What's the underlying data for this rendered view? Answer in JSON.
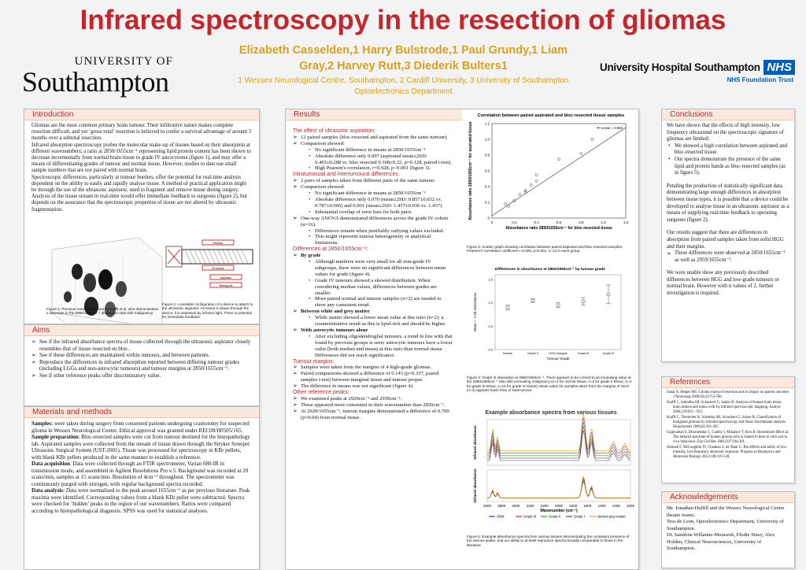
{
  "header": {
    "title": "Infrared spectroscopy in the resection of gliomas",
    "authors_line1": "Elizabeth Casselden,1 Harry Bulstrode,1 Paul Grundy,1 Liam",
    "authors_line2": "Gray,2 Harvey Rutt,3 Diederik Bulters1",
    "affil_line1": "1 Wessex Neurological Centre, Southampton, 2 Cardiff University, 3 University of Southampton",
    "affil_line2": "Optoelectronics Department",
    "uni_line1": "UNIVERSITY OF",
    "uni_line2": "Southampton",
    "hosp_name": "University Hospital Southampton",
    "hosp_nhs": "NHS",
    "hosp_trust": "NHS Foundation Trust"
  },
  "intro": {
    "title": "Introduction",
    "p1": "Gliomas are the most common primary brain tumour. Their infiltrative nature makes complete resection difficult, and yet ‘gross total’ resection is believed to confer a survival advantage of around 3 months over a subtotal resection.",
    "p2": "Infrared absorption spectroscopy probes the molecular make-up of tissues based on their absorption at different wavenumbers; a ratio at 2850/1655cm⁻¹ representing lipid:protein content has been shown to decrease incrementally from normal brain tissue to grade IV astrocytoma (figure 1), and may offer a means of differentiating grades of tumour and normal tissue. However, studies to date use small sample numbers that are not paired with normal brain.",
    "p3": "Spectroscopic differences, particularly at tumour borders, offer the potential for real-time analysis dependent on the ability to easily and rapidly analyse tissue. A method of practical application might be through the use of the ultrasonic aspirator, used to fragment and remove tissue during surgery. Analysis of the tissue stream in real-time would offer immediate feedback to surgeons (figure 2), but depends on the assurance that the spectroscopic properties of tissue are not altered by ultrasonic fragmentation.",
    "fig1_caption": "Figure 1: Previous results published by Krafft et al, who demonstrated a decrease in the 2850/1655cm⁻¹ absorption ratio with malignancy.",
    "fig2_caption": "Figure 2: A possible configuration of a device to attach to the ultrasonic aspirator. As tissue is drawn through the device, it is assessed by infrared light. There is potential for immediate feedback.",
    "fig2_labels": [
      "Detector",
      "IR source",
      "Aspirator",
      "Waveguide"
    ]
  },
  "aims": {
    "title": "Aims",
    "items": [
      "See if the infrared absorbance spectra of tissue collected through the ultrasonic aspirator closely resembles that of tissue resected en bloc.",
      "See if these differences are maintained within tumours, and between patients.",
      "Reproduce the differences in infrared absorption reported between differing tumour grades (including LGGs and non-astrocytic tumours) and tumour margins at 2850/1655cm⁻¹.",
      "See if other reference peaks offer discriminatory value."
    ]
  },
  "methods": {
    "title": "Materials and methods",
    "s1_label": "Samples:",
    "s1": " were taken during surgery from consented patients undergoing craniotomy for suspected glioma in Wessex Neurological Centre. Ethical approval was granted under REC08/H0505/165.",
    "s2_label": "Sample preparation",
    "s2": ": Bloc-resected samples were cut from tumour destined for the histopathology lab. Aspirated samples were collected from the stream of tissue drawn through the Stryker Sonopet Ultrasonic Surgical System (UST-2001). Tissue was processed for spectroscopy in KBr pellets, with blank KBr pellets produced in the same manner to establish a reference.",
    "s3_label": "Data acquisition",
    "s3": ": Data were collected through an FTIR spectrometer, Varian 680-IR in transmission mode, and assembled in Agilent Resolutions Pro v.5. Background was recorded at 20 scans/min, samples at 15 scans/min. Resolution of 4cm⁻¹ throughout. The spectrometer was continuously purged with nitrogen, with regular background spectra recorded.",
    "s4_label": "Data analysis:",
    "s4": " Data were normalised to the peak around 1655cm⁻¹ as per previous literature. Peak maxima were identified. Corresponding values from a blank KBr pellet were subtracted. Spectra were checked for ‘hidden’ peaks in the region of our wavenumbers. Ratios were compared according to histopathological diagnosis. SPSS was used for statistical analyses."
  },
  "results": {
    "title": "Results",
    "h1": "The effect of ultrasonic aspiration:",
    "a1": "12 paired samples (bloc-resected and aspirated from the same tumour).",
    "a2": "Comparison showed:",
    "a2_items": [
      "No significant difference in means at 2850/1655cm⁻¹",
      "Absolute difference only 0.097 (aspirated mean±2SD: 0.465±0.288 vs .bloc resected 0.368±0.22, p=0.128, paired t-test).",
      "High Pearson's correlation, r=0.928, p<0.001 (figure 3)."
    ],
    "h2": "Intratumoural and intertumoural differences:",
    "b1": "2 pairs of samples taken from different parts of the same tumour.",
    "b2": "Comparison showed:",
    "b2_items": [
      "No significant difference in means at 2850/1655cm⁻¹",
      "Absolute difference only 0.070 (mean±2SD: 0.857±0.032 vs. 0.787±0.066) and 0.001 (mean±2SD: 1.457±0.036 vs. 1.457).",
      "Substantial overlap of error bars for both pairs."
    ],
    "b3": "One-way ANOVA demonstrated differences across the grade IV cohort (n=16).",
    "b3_items": [
      "Differences remain when justifiably outlying values excluded.",
      "This might represent tumour heterogeneity or analytical limitations."
    ],
    "h3": "Differences at 2850/1655cm⁻¹:",
    "c1": "By grade",
    "c1_items": [
      "Although numbers were very small for all non-grade IV subgroups, there were no significant differences between mean values for grade (figure 4).",
      "Grade IV tumours showed a skewed distribution. When considering median values, differences between grades are smaller.",
      "More paired normal and tumour samples (n=2) are needed to show any consistent trend."
    ],
    "c2": "Between white and grey matter",
    "c2_items": [
      "While matter showed a lower mean value at this ratio (n=2): a counterintuitive result as this is lipid-rich and should be higher."
    ],
    "c3": "With astrocytic tumours alone",
    "c3_items": [
      "After excluding oligodendroglial tumours, a trend in line with that found by previous groups is seen; astrocytic tumours have a lower value (both median and mean) at this ratio than normal tissue. Differences did not reach significance."
    ],
    "h4": "Tumour margins:",
    "d_items": [
      "Samples were taken from the margins of 4 high-grade gliomas.",
      "Paired comparisons showed a difference of 0.143 (p=0.337, paired samples t-test) between marginal tissue and tumour proper.",
      "The difference in means was not significant (figure 4)."
    ],
    "h5": "Other reference peaks:",
    "e_items": [
      "We examined peaks at 2929cm⁻¹ and 2959cm⁻¹.",
      "These appeared more consistent in their wavenumber than 2850cm⁻¹.",
      "At 2929/1655cm⁻¹, tumour margins demonstrated a difference of 0.709 (p=0.04) from normal tissue."
    ],
    "fig3_caption": "Figure 3: Scatter graph showing correlation between paired aspirated and bloc-resected samples. Pearson's correlation coefficient r=0.928, p<0.001, n=12 in each group.",
    "fig4_caption": "Figure 4: Graph of absorption at 2850/1655cm⁻¹. There appears to be a trend to an increasing value at the 2850/1655cm⁻¹ ratio with increasing malignancy (n=2 for normal tissue, n=2 for grade II tissue, n=4 for grade III tissue, n=16 for grade IV tissue). Mean value for samples taken from the margins of HGG (n=4) appears lower than of solid tumour.",
    "fig5_caption": "Figure 5: Example absorbance spectra from various tissues demonstrating the consistent presence of the various peaks, and our ability to at least reproduce spectra broadly comparable to those in the literature."
  },
  "conclusions": {
    "title": "Conclusions",
    "p1": "We have shown that the effects of high intensity, low frequency ultrasound on the spectroscopic signature of gliomas are limited:",
    "items": [
      "We showed a high correlation between aspirated and bloc-resected tissue.",
      "Our spectra demonstrate the presence of the same lipid and protein bands as bloc-resected samples (as in figure 5)."
    ],
    "p2": "Pending the production of statistically significant data demonstrating large enough differences in absorption between tissue types, it is possible that a device could be developed to analyse tissue in an ultrasonic aspirator as a means of supplying real-time feedback to operating surgeons (figure 2).",
    "p3": "Our results suggest that there are differences in absorption from paired samples taken from solid HGG and their margins.",
    "arrow_item": "These differences were observed at 2850/1655cm⁻¹ as well as 2959/1655cm⁻¹.",
    "p4": "We were unable show any previously described differences between HGG and low-grade tumours or normal brain. However with n values of 2, further investigation is required."
  },
  "references": {
    "title": "References",
    "items": [
      "Sanai N, Berger MS. Glioma extent of resection and its impact on patient outcome. J Neurosurg 2008;62(4):753-766.",
      "Krafft C, Sobottka SB, Schackert G, Salzer R. Analysis of human brain tissue, brain tumors and tumor cells by infrared spectroscopic mapping. Analyst 2004;129:921 - 925.",
      "Krafft C, Thummler K, Sobottka SB, Schackert G, Salzer R. Classification of malignant gliomas by infrared spectroscopy and linear discriminant analysis. Biopolymers 2006;82:301-305.",
      "Gajjeraman S, Dezsnetsdar C, Camby I, Mikatsuv T, Kiss R. Hutsenhuerl BR et al. The infrared spectrum of human glioma cells is related to their in vitro and in vivo behaviour. Exp Cell Res 2004;297:294-301.",
      "Ahmadi F, McLoughlin IV, Chauhan S, ter-Haar G. Bio-effects and safety of low-intensity, low-frequency ultrasonic exposure. Progress in Biophysics and Molecular Biology 2012;108:119-138."
    ]
  },
  "ack": {
    "title": "Acknowledgements",
    "p1": "Mr. Jonathan Duffill and the Wessex Neurological Centre theatre teams.",
    "p2": "Tess de Leon, Optoelectronics Department, University of Southampton.",
    "p3": "Dr. Sandrine Willaime-Morawek, Elodie Siney, Alex Holden, Clinical Neurosciences, University of Southampton."
  },
  "chart_data": [
    {
      "type": "scatter",
      "title": "Correlation between paired aspirated and bloc-resected tissue samples",
      "xlabel": "Absorbance ratio 2850/1655cm⁻¹ for bloc-resected tissue",
      "ylabel": "Absorbance ratio 2850/1655cm⁻¹ for aspirated tissue",
      "xlim": [
        0,
        1.2
      ],
      "ylim": [
        0,
        1.2
      ],
      "xticks": [
        "0",
        "0.2",
        "0.4",
        "0.6",
        "0.8",
        "1.0",
        "1.2"
      ],
      "yticks": [
        "0",
        "0.2",
        "0.4",
        "0.6",
        "0.8",
        "1.0",
        "1.2"
      ],
      "legend": "R² Linear = 0.862",
      "points": [
        [
          0.12,
          0.18
        ],
        [
          0.15,
          0.15
        ],
        [
          0.2,
          0.22
        ],
        [
          0.25,
          0.3
        ],
        [
          0.3,
          0.33
        ],
        [
          0.3,
          0.35
        ],
        [
          0.35,
          0.42
        ],
        [
          0.4,
          0.47
        ],
        [
          0.4,
          0.55
        ],
        [
          0.6,
          0.75
        ],
        [
          0.8,
          0.82
        ],
        [
          0.9,
          1.0
        ]
      ]
    },
    {
      "type": "bar",
      "title": "Differences in absorbance at 2850/1655cm⁻¹ by tumour grade",
      "xlabel": "Tumour Grade",
      "ylabel": "Mean +- 2 SE Absorbance",
      "categories": [
        "Normal",
        "Grade II",
        "HGG margins",
        "Grade III",
        "Grade IV"
      ],
      "values": [
        0.9,
        1.05,
        0.95,
        1.03,
        1.18
      ],
      "errors": [
        0.05,
        0.04,
        0.05,
        0.08,
        0.2
      ],
      "ylim": [
        0,
        1.6
      ],
      "yticks": [
        "0.0",
        "0.5",
        "1.0",
        "1.5"
      ]
    },
    {
      "type": "line",
      "title": "Example absorbance spectra from various tissues",
      "xlabel": "Wavenumber (cm⁻¹)",
      "ylabel_top": "Infrared absorbance",
      "ylabel_bottom": "Infrared absorbance",
      "xticks": [
        "3000",
        "2800",
        "2600",
        "2400",
        "2200",
        "2000",
        "1800",
        "1600",
        "1400",
        "1200",
        "1000"
      ],
      "series": [
        {
          "name": "GBM",
          "color": "#1f4e9c"
        },
        {
          "name": "Grade III",
          "color": "#d62728"
        },
        {
          "name": "Grade II",
          "color": "#2ca02c"
        },
        {
          "name": "Grade I",
          "color": "#7b3294"
        },
        {
          "name": "Normal grey matter",
          "color": "#e7a21b"
        }
      ]
    }
  ]
}
